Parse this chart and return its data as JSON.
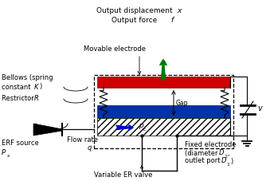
{
  "bg_color": "#ffffff",
  "fig_width": 3.39,
  "fig_height": 2.27,
  "dpi": 100,
  "colors": {
    "red_electrode": "#cc0000",
    "blue_electrode": "#0033aa",
    "arrow_green": "#007700",
    "arrow_blue": "#0000cc",
    "black": "#000000",
    "white": "#ffffff"
  },
  "texts": {
    "out_disp": "Output displacement ",
    "out_disp_x": "x",
    "out_force": "Output force ",
    "out_force_f": "f",
    "movable": "Movable electrode",
    "bellows1": "Bellows (spring",
    "bellows2": "constant ",
    "bellows2_K": "K",
    "bellows2_close": ")",
    "restrictor": "Restrictor ",
    "restrictor_R": "R",
    "erf": "ERF source",
    "erf_P": "P",
    "erf_s": "s",
    "flow": "Flow rate",
    "flow_q": "q",
    "pc": "p",
    "pc_sub": "c",
    "gap": "Gap",
    "fixed1": "Fixed electrode",
    "fixed2": "(diameter ",
    "fixed2_D": "D",
    "fixed2_2": "2",
    "fixed2_comma": ",",
    "fixed3": "outlet port ",
    "fixed3_D": "D",
    "fixed3_1": "1",
    "fixed3_close": ")",
    "varER": "Variable ER valve",
    "volt": "v"
  }
}
